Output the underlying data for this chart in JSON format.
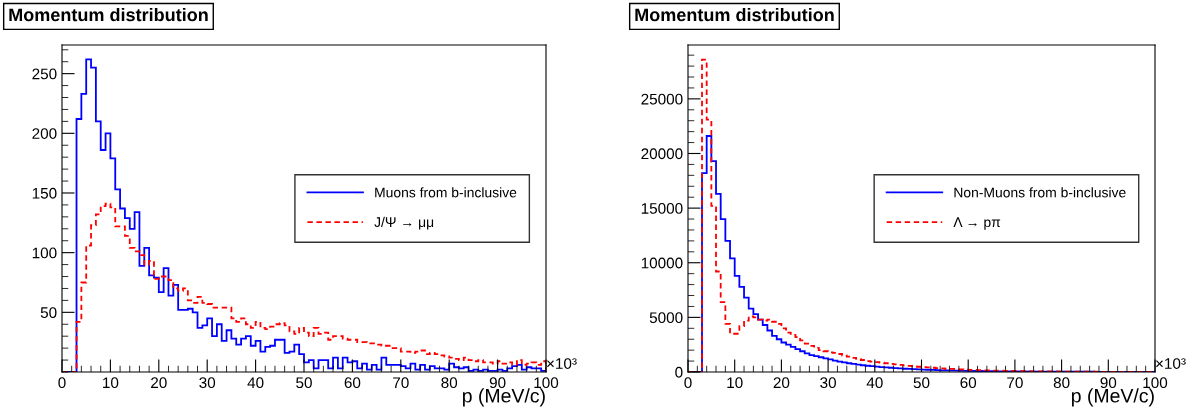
{
  "chart_data": [
    {
      "type": "histogram",
      "title": "Momentum distribution",
      "xlabel": "p (MeV/c)",
      "annotations": [
        "×10³"
      ],
      "bins": [
        0,
        1,
        2,
        3,
        4,
        5,
        6,
        7,
        8,
        9,
        10,
        11,
        12,
        13,
        14,
        15,
        16,
        17,
        18,
        19,
        20,
        21,
        22,
        23,
        24,
        25,
        26,
        27,
        28,
        29,
        30,
        31,
        32,
        33,
        34,
        35,
        36,
        37,
        38,
        39,
        40,
        41,
        42,
        43,
        44,
        45,
        46,
        47,
        48,
        49,
        50,
        51,
        52,
        53,
        54,
        55,
        56,
        57,
        58,
        59,
        60,
        61,
        62,
        63,
        64,
        65,
        66,
        67,
        68,
        69,
        70,
        71,
        72,
        73,
        74,
        75,
        76,
        77,
        78,
        79,
        80,
        81,
        82,
        83,
        84,
        85,
        86,
        87,
        88,
        89,
        90,
        91,
        92,
        93,
        94,
        95,
        96,
        97,
        98,
        99,
        100
      ],
      "xlim": [
        0,
        100
      ],
      "xticks": [
        0,
        10,
        20,
        30,
        40,
        50,
        60,
        70,
        80,
        90,
        100
      ],
      "ylim": [
        0,
        274
      ],
      "yticks": [
        50,
        100,
        150,
        200,
        250
      ],
      "legend": "right",
      "grid": false,
      "series": [
        {
          "name": "Muons from b-inclusive",
          "color": "#0000ff",
          "line_style": "solid",
          "values": [
            0,
            0,
            0,
            212,
            233,
            262,
            255,
            210,
            186,
            200,
            179,
            153,
            137,
            129,
            120,
            134,
            89,
            104,
            81,
            79,
            67,
            87,
            64,
            73,
            52,
            52,
            53,
            50,
            37,
            39,
            45,
            30,
            40,
            26,
            35,
            28,
            23,
            28,
            30,
            22,
            26,
            17,
            21,
            22,
            27,
            27,
            16,
            17,
            23,
            15,
            8,
            10,
            3,
            10,
            10,
            3,
            12,
            3,
            12,
            8,
            9,
            3,
            7,
            2,
            6,
            2,
            12,
            6,
            6,
            6,
            5,
            3,
            7,
            2,
            6,
            2,
            5,
            3,
            3,
            2,
            7,
            4,
            3,
            4,
            1,
            2,
            1,
            2,
            1,
            1,
            2,
            1,
            3,
            5,
            6,
            2,
            4,
            3,
            3,
            1
          ]
        },
        {
          "name": "J/Ψ → μμ",
          "color": "#ff0000",
          "line_style": "dashed",
          "values": [
            0,
            0,
            0,
            42,
            75,
            106,
            123,
            132,
            139,
            141,
            138,
            122,
            122,
            114,
            104,
            101,
            98,
            90,
            93,
            78,
            80,
            80,
            77,
            70,
            68,
            70,
            60,
            58,
            63,
            58,
            57,
            54,
            54,
            54,
            54,
            45,
            42,
            45,
            40,
            37,
            42,
            37,
            36,
            38,
            40,
            41,
            39,
            34,
            32,
            37,
            33,
            30,
            37,
            32,
            33,
            27,
            30,
            30,
            28,
            27,
            27,
            25,
            25,
            24,
            24,
            23,
            22,
            22,
            20,
            20,
            17,
            17,
            16,
            17,
            18,
            15,
            16,
            15,
            14,
            13,
            12,
            11,
            10,
            12,
            10,
            9,
            10,
            8,
            8,
            7,
            9,
            7,
            8,
            6,
            10,
            6,
            7,
            8,
            6,
            9
          ]
        }
      ]
    },
    {
      "type": "histogram",
      "title": "Momentum distribution",
      "xlabel": "p (MeV/c)",
      "annotations": [
        "×10³"
      ],
      "bins": [
        0,
        1,
        2,
        3,
        4,
        5,
        6,
        7,
        8,
        9,
        10,
        11,
        12,
        13,
        14,
        15,
        16,
        17,
        18,
        19,
        20,
        21,
        22,
        23,
        24,
        25,
        26,
        27,
        28,
        29,
        30,
        31,
        32,
        33,
        34,
        35,
        36,
        37,
        38,
        39,
        40,
        41,
        42,
        43,
        44,
        45,
        46,
        47,
        48,
        49,
        50,
        51,
        52,
        53,
        54,
        55,
        56,
        57,
        58,
        59,
        60,
        61,
        62,
        63,
        64,
        65,
        66,
        67,
        68,
        69,
        70,
        71,
        72,
        73,
        74,
        75,
        76,
        77,
        78,
        79,
        80,
        81,
        82,
        83,
        84,
        85,
        86,
        87,
        88,
        89,
        90,
        91,
        92,
        93,
        94,
        95,
        96,
        97,
        98,
        99,
        100
      ],
      "xlim": [
        0,
        100
      ],
      "xticks": [
        0,
        10,
        20,
        30,
        40,
        50,
        60,
        70,
        80,
        90,
        100
      ],
      "ylim": [
        0,
        29930
      ],
      "yticks": [
        0,
        5000,
        10000,
        15000,
        20000,
        25000
      ],
      "legend": "right",
      "grid": false,
      "series": [
        {
          "name": "Non-Muons from b-inclusive",
          "color": "#0000ff",
          "line_style": "solid",
          "values": [
            0,
            0,
            0,
            18200,
            21600,
            19300,
            16300,
            14000,
            12000,
            10400,
            8800,
            7800,
            6800,
            5800,
            5300,
            4800,
            4300,
            3800,
            3300,
            3000,
            2700,
            2500,
            2300,
            2100,
            1900,
            1700,
            1550,
            1450,
            1350,
            1250,
            1150,
            1050,
            950,
            880,
            800,
            740,
            680,
            620,
            570,
            530,
            490,
            450,
            420,
            390,
            360,
            330,
            300,
            280,
            260,
            240,
            220,
            205,
            190,
            175,
            160,
            150,
            140,
            130,
            120,
            110,
            100,
            95,
            90,
            85,
            80,
            75,
            70,
            65,
            60,
            56,
            52,
            48,
            45,
            42,
            40,
            38,
            36,
            34,
            32,
            30,
            28,
            27,
            26,
            25,
            24,
            23,
            22,
            21,
            20,
            19,
            18,
            17,
            16,
            15,
            14,
            13,
            12,
            11,
            10,
            9
          ]
        },
        {
          "name": "Λ → pπ",
          "color": "#ff0000",
          "line_style": "dashed",
          "values": [
            0,
            0,
            0,
            28600,
            23100,
            15200,
            9200,
            6400,
            4400,
            3500,
            3500,
            4200,
            4700,
            5100,
            5000,
            4800,
            4700,
            4800,
            4600,
            4400,
            4000,
            3600,
            3400,
            3200,
            2900,
            2600,
            2400,
            2200,
            2000,
            1900,
            1800,
            1750,
            1650,
            1500,
            1400,
            1300,
            1200,
            1100,
            1000,
            950,
            900,
            850,
            800,
            750,
            700,
            650,
            600,
            560,
            520,
            480,
            450,
            420,
            390,
            360,
            330,
            300,
            280,
            260,
            240,
            220,
            200,
            185,
            170,
            155,
            140,
            130,
            120,
            110,
            100,
            90,
            85,
            80,
            75,
            70,
            65,
            60,
            55,
            50,
            46,
            42,
            38,
            35,
            32,
            30,
            28,
            26,
            24,
            22,
            20,
            18,
            16,
            15,
            14,
            13,
            12,
            11,
            10,
            9,
            8,
            7
          ]
        }
      ]
    }
  ]
}
